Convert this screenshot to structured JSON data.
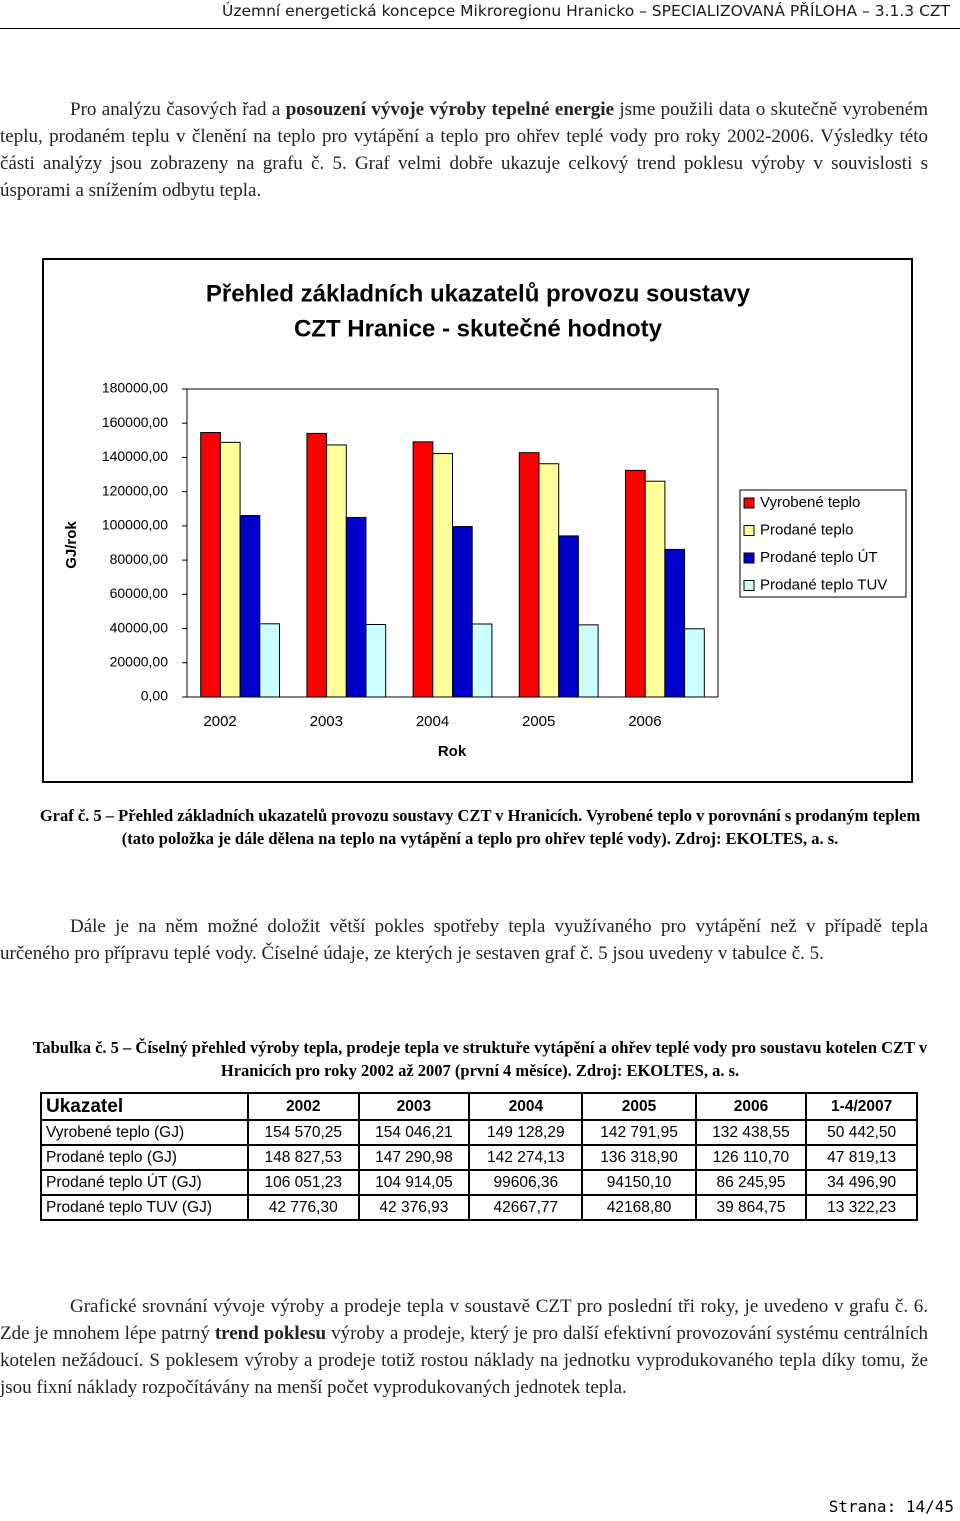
{
  "header": {
    "title": "Územní energetická koncepce Mikroregionu Hranicko – SPECIALIZOVANÁ PŘÍLOHA – 3.1.3 CZT"
  },
  "paragraphs": [
    {
      "runs": [
        {
          "text": "Pro analýzu časových řad a "
        },
        {
          "text": "posouzení vývoje výroby tepelné energie",
          "bold": true
        },
        {
          "text": " jsme použili data o skutečně vyrobeném teplu, prodaném teplu v členění na teplo pro vytápění a teplo pro ohřev teplé vody pro roky 2002-2006. Výsledky této části analýzy jsou zobrazeny na grafu č. 5. Graf velmi dobře ukazuje celkový trend poklesu výroby v souvislosti s úsporami a snížením odbytu tepla."
        }
      ]
    },
    {
      "runs": [
        {
          "text": "Dále je na něm možné doložit větší pokles spotřeby tepla využívaného pro vytápění než v případě tepla určeného pro přípravu teplé vody. Číselné údaje, ze kterých je sestaven graf č. 5 jsou uvedeny v tabulce č. 5."
        }
      ]
    },
    {
      "runs": [
        {
          "text": "Grafické srovnání vývoje výroby a prodeje tepla v soustavě CZT pro poslední tři roky, je uvedeno v grafu č. 6. Zde je mnohem lépe patrný "
        },
        {
          "text": "trend poklesu",
          "bold": true
        },
        {
          "text": " výroby a prodeje, který je pro další efektivní provozování systému centrálních kotelen nežádoucí. S poklesem výroby a prodeje totiž rostou náklady na jednotku vyprodukovaného tepla díky tomu, že jsou fixní náklady rozpočítávány na menší počet vyprodukovaných jednotek tepla."
        }
      ]
    }
  ],
  "chart_data": {
    "type": "bar",
    "title": "Přehled základních ukazatelů provozu soustavy",
    "subtitle": "CZT Hranice - skutečné hodnoty",
    "y_label": "GJ/rok",
    "x_label": "Rok",
    "categories": [
      "2002",
      "2003",
      "2004",
      "2005",
      "2006"
    ],
    "series": [
      {
        "name": "Vyrobené teplo",
        "color": "#ff0000",
        "values": [
          154570.25,
          154046.21,
          149128.29,
          142791.95,
          132438.55
        ]
      },
      {
        "name": "Prodané teplo",
        "color": "#ffff99",
        "values": [
          148827.53,
          147290.98,
          142274.13,
          136318.9,
          126110.7
        ]
      },
      {
        "name": "Prodané teplo ÚT",
        "color": "#0000cc",
        "values": [
          106051.23,
          104914.05,
          99606.36,
          94150.1,
          86245.95
        ]
      },
      {
        "name": "Prodané teplo TUV",
        "color": "#ccffff",
        "values": [
          42776.3,
          42376.93,
          42667.77,
          42168.8,
          39864.75
        ]
      }
    ],
    "ylim": [
      0,
      180000
    ],
    "yticks": [
      {
        "value": 0,
        "label": "0,00"
      },
      {
        "value": 20000,
        "label": "20000,00"
      },
      {
        "value": 40000,
        "label": "40000,00"
      },
      {
        "value": 60000,
        "label": "60000,00"
      },
      {
        "value": 80000,
        "label": "80000,00"
      },
      {
        "value": 100000,
        "label": "100000,00"
      },
      {
        "value": 120000,
        "label": "120000,00"
      },
      {
        "value": 140000,
        "label": "140000,00"
      },
      {
        "value": 160000,
        "label": "160000,00"
      },
      {
        "value": 180000,
        "label": "180000,00"
      }
    ],
    "grid": false,
    "legend": "right"
  },
  "caption": "Graf č. 5 – Přehled základních ukazatelů provozu soustavy CZT v Hranicích. Vyrobené teplo v porovnání s prodaným teplem (tato položka je dále dělena na teplo na vytápění a teplo pro ohřev teplé vody). Zdroj: EKOLTES, a. s.",
  "table": {
    "caption": "Tabulka č. 5 – Číselný přehled výroby tepla, prodeje tepla ve struktuře vytápění a ohřev teplé vody pro soustavu kotelen CZT v Hranicích pro roky 2002 až 2007 (první 4 měsíce). Zdroj: EKOLTES, a. s.",
    "header": [
      "Ukazatel",
      "2002",
      "2003",
      "2004",
      "2005",
      "2006",
      "1-4/2007"
    ],
    "rows": [
      [
        "Vyrobené teplo (GJ)",
        "154 570,25",
        "154 046,21",
        "149 128,29",
        "142 791,95",
        "132 438,55",
        "50 442,50"
      ],
      [
        "Prodané teplo (GJ)",
        "148 827,53",
        "147 290,98",
        "142 274,13",
        "136 318,90",
        "126 110,70",
        "47 819,13"
      ],
      [
        "Prodané teplo ÚT (GJ)",
        "106 051,23",
        "104 914,05",
        "99606,36",
        "94150,10",
        "86 245,95",
        "34 496,90"
      ],
      [
        "Prodané teplo TUV (GJ)",
        "42 776,30",
        "42 376,93",
        "42667,77",
        "42168,80",
        "39 864,75",
        "13 322,23"
      ]
    ]
  },
  "footer": {
    "page": "Strana: 14/45"
  }
}
